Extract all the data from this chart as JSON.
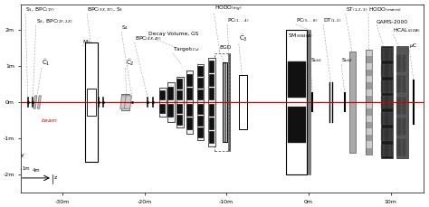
{
  "figsize": [
    4.74,
    2.29
  ],
  "dpi": 100,
  "xlim": [
    -35,
    14
  ],
  "ylim": [
    -2.5,
    2.7
  ],
  "xticks": [
    -30,
    -20,
    -10,
    0,
    10
  ],
  "xtick_labels": [
    "-30m",
    "-20m",
    "-10m",
    "0m",
    "10m"
  ],
  "yticks": [
    -2,
    -1,
    0,
    1,
    2
  ],
  "ytick_labels": [
    "-2m",
    "-1m",
    "0m",
    "1m",
    "2m"
  ],
  "beam_color": "#cc0000",
  "bg_color": "#ffffff"
}
